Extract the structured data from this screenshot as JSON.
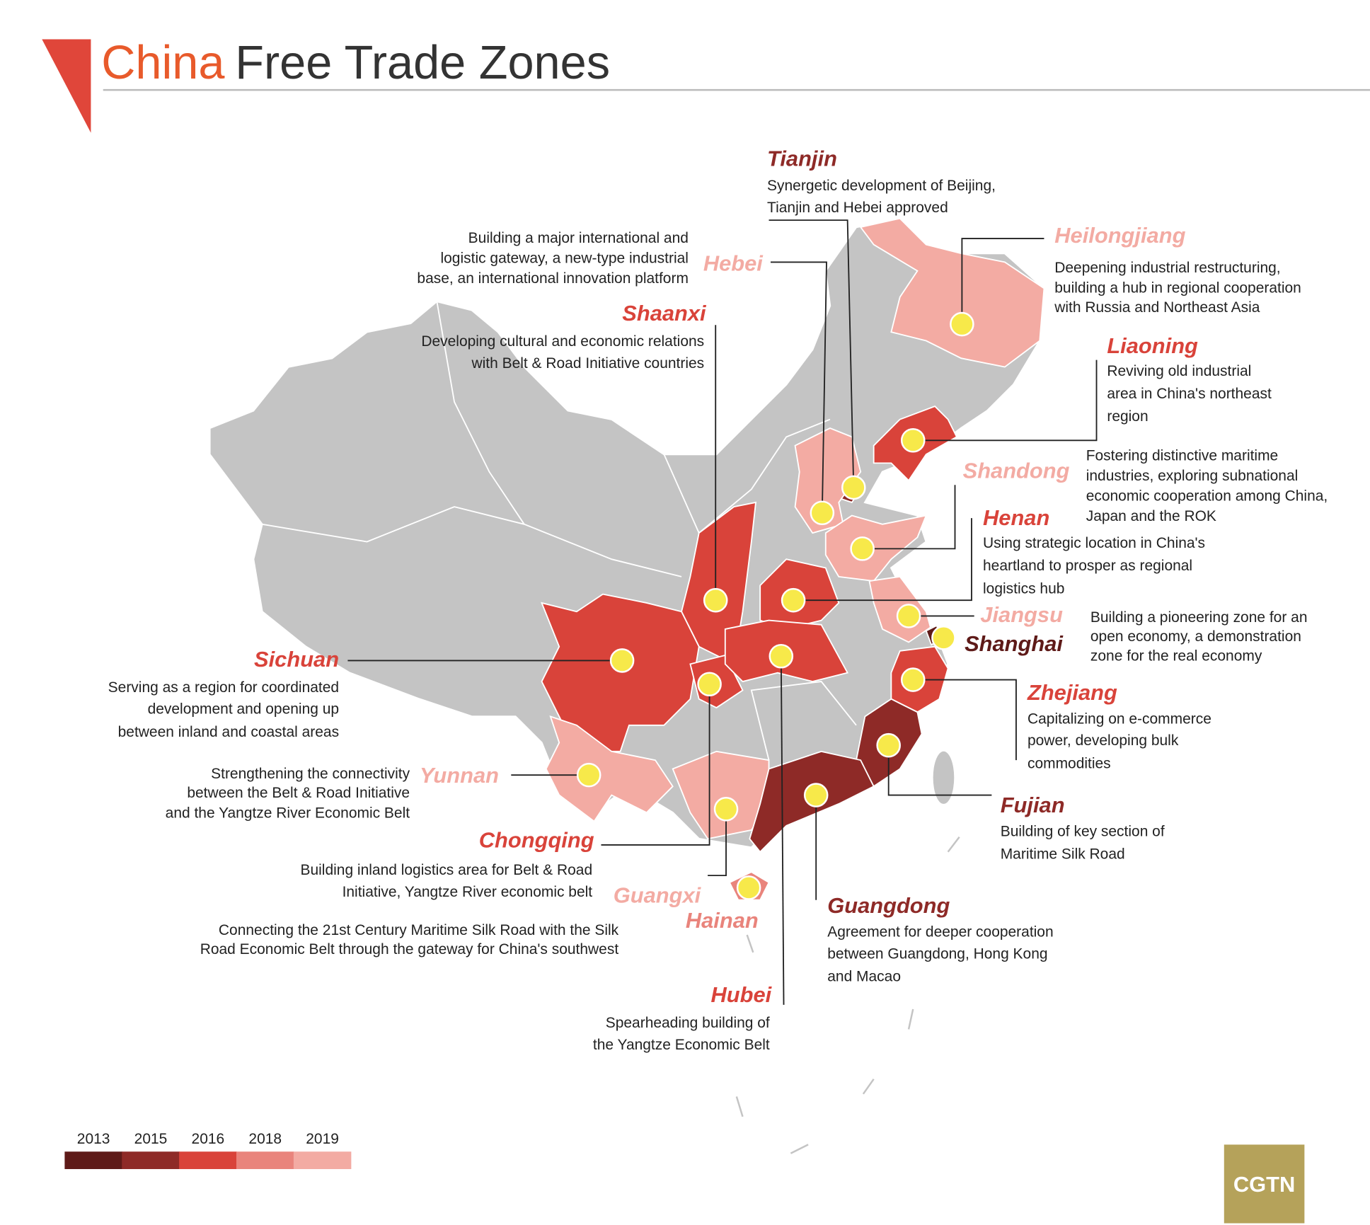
{
  "header": {
    "title_highlight": "China",
    "title_rest": "Free Trade Zones"
  },
  "zones": [
    {
      "name": "Tianjin",
      "color": "#8e2a27",
      "description": [
        "Synergetic development of Beijing,",
        "Tianjin and Hebei approved"
      ]
    },
    {
      "name": "Hebei",
      "color": "#f3aba3",
      "description": [
        "Building a major international and",
        "logistic gateway, a new-type industrial",
        "base, an international innovation platform"
      ]
    },
    {
      "name": "Heilongjiang",
      "color": "#f3aba3",
      "description": [
        "Deepening industrial restructuring,",
        "building a hub in regional cooperation",
        "with Russia and Northeast Asia"
      ]
    },
    {
      "name": "Shaanxi",
      "color": "#d9433a",
      "description": [
        "Developing cultural and economic relations",
        "with Belt & Road Initiative countries"
      ]
    },
    {
      "name": "Liaoning",
      "color": "#d9433a",
      "description": [
        "Reviving old industrial",
        "area in China's northeast",
        "region"
      ]
    },
    {
      "name": "Shandong",
      "color": "#f3aba3",
      "description": [
        "Fostering distinctive maritime",
        "industries, exploring subnational",
        "economic cooperation among China,",
        "Japan and the ROK"
      ]
    },
    {
      "name": "Henan",
      "color": "#d9433a",
      "description": [
        "Using strategic location in China's",
        "heartland to prosper as regional",
        "logistics hub"
      ]
    },
    {
      "name": "Jiangsu",
      "color": "#f3aba3",
      "description": [
        "Building a pioneering zone for an",
        "open economy, a demonstration",
        "zone for the real economy"
      ]
    },
    {
      "name": "Shanghai",
      "color": "#5e1a18",
      "description": []
    },
    {
      "name": "Sichuan",
      "color": "#d9433a",
      "description": [
        "Serving as a region for coordinated",
        "development and opening up",
        "between inland and coastal areas"
      ]
    },
    {
      "name": "Zhejiang",
      "color": "#d9433a",
      "description": [
        "Capitalizing on e-commerce",
        "power, developing bulk",
        "commodities"
      ]
    },
    {
      "name": "Yunnan",
      "color": "#f3aba3",
      "description": [
        "Strengthening the connectivity",
        "between the Belt & Road Initiative",
        "and the Yangtze River Economic Belt"
      ]
    },
    {
      "name": "Fujian",
      "color": "#8e2a27",
      "description": [
        "Building of key section of",
        "Maritime Silk Road"
      ]
    },
    {
      "name": "Chongqing",
      "color": "#d9433a",
      "description": [
        "Building inland logistics area for Belt & Road",
        "Initiative, Yangtze River economic belt"
      ]
    },
    {
      "name": "Guangxi",
      "color": "#f3aba3",
      "description": [
        "Connecting the 21st Century Maritime Silk Road with the Silk",
        "Road Economic Belt through the gateway for China's southwest"
      ]
    },
    {
      "name": "Hainan",
      "color": "#e9847c",
      "description": []
    },
    {
      "name": "Guangdong",
      "color": "#8e2a27",
      "description": [
        "Agreement for deeper cooperation",
        "between Guangdong, Hong Kong",
        "and Macao"
      ]
    },
    {
      "name": "Hubei",
      "color": "#d9433a",
      "description": [
        "Spearheading building of",
        "the Yangtze Economic Belt"
      ]
    }
  ],
  "legend": [
    {
      "label": "2013",
      "color": "#5e1a18"
    },
    {
      "label": "2015",
      "color": "#8e2a27"
    },
    {
      "label": "2016",
      "color": "#d9433a"
    },
    {
      "label": "2018",
      "color": "#e9847c"
    },
    {
      "label": "2019",
      "color": "#f3aba3"
    }
  ],
  "logo": "CGTN"
}
